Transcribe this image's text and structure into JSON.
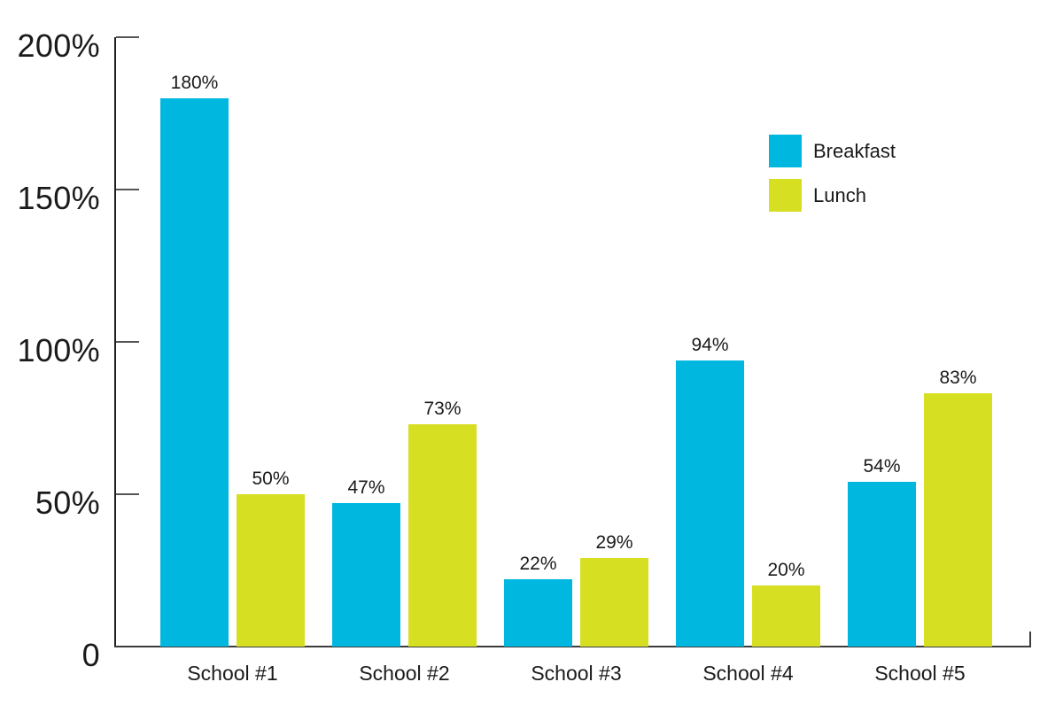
{
  "chart_data": {
    "type": "bar",
    "title": "",
    "xlabel": "",
    "ylabel": "",
    "categories": [
      "School #1",
      "School #2",
      "School #3",
      "School #4",
      "School #5"
    ],
    "series": [
      {
        "name": "Breakfast",
        "color": "#00B7E0",
        "values": [
          180,
          47,
          22,
          94,
          54
        ],
        "labels": [
          "180%",
          "47%",
          "22%",
          "94%",
          "54%"
        ]
      },
      {
        "name": "Lunch",
        "color": "#D7DF23",
        "values": [
          50,
          73,
          29,
          20,
          83
        ],
        "labels": [
          "50%",
          "73%",
          "29%",
          "20%",
          "83%"
        ]
      }
    ],
    "y_ticks": [
      {
        "label": "200%",
        "value": 200
      },
      {
        "label": "150%",
        "value": 150
      },
      {
        "label": "100%",
        "value": 100
      },
      {
        "label": "50%",
        "value": 50
      },
      {
        "label": "0",
        "value": 0
      }
    ],
    "ylim": [
      0,
      200
    ],
    "grid": false,
    "legend_position": "top-right",
    "axis_color": "#1f1f1f",
    "text_color": "#1a1a1a"
  }
}
